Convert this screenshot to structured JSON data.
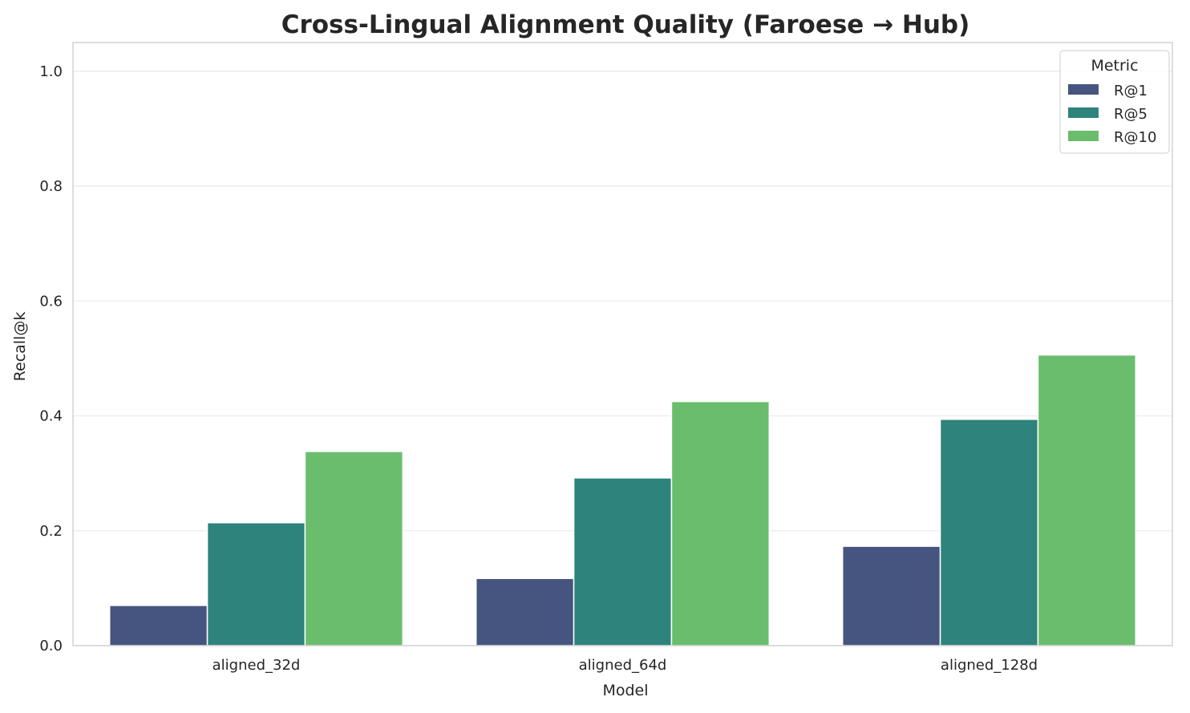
{
  "chart_data": {
    "type": "bar",
    "title": "Cross-Lingual Alignment Quality (Faroese → Hub)",
    "xlabel": "Model",
    "ylabel": "Recall@k",
    "ylim": [
      0,
      1.05
    ],
    "yticks": [
      "0.0",
      "0.2",
      "0.4",
      "0.6",
      "0.8",
      "1.0"
    ],
    "grid": "horizontal",
    "categories": [
      "aligned_32d",
      "aligned_64d",
      "aligned_128d"
    ],
    "legend": {
      "title": "Metric",
      "placement": "top-right"
    },
    "series": [
      {
        "name": "R@1",
        "color": "#46557f",
        "values": [
          0.07,
          0.117,
          0.173
        ]
      },
      {
        "name": "R@5",
        "color": "#2e837c",
        "values": [
          0.214,
          0.292,
          0.394
        ]
      },
      {
        "name": "R@10",
        "color": "#6abd6c",
        "values": [
          0.338,
          0.425,
          0.506
        ]
      }
    ]
  }
}
